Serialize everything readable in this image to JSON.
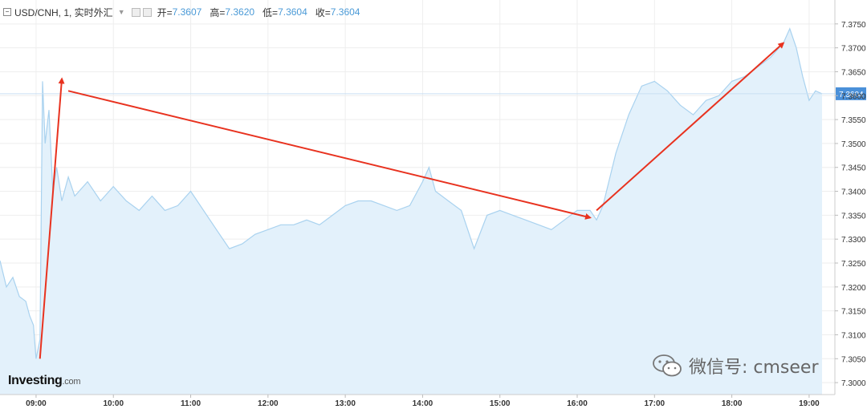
{
  "legend": {
    "symbol": "USD/CNH, 1, 实时外汇",
    "open_label": "开=",
    "open": "7.3607",
    "high_label": "高=",
    "high": "7.3620",
    "low_label": "低=",
    "low": "7.3604",
    "close_label": "收=",
    "close": "7.3604"
  },
  "watermark": {
    "text": "微信号: cmseer",
    "icon": "wechat-icon"
  },
  "logo": {
    "text": "Investing",
    "suffix": ".com"
  },
  "colors": {
    "line": "#a9d2ef",
    "fill": "#e3f1fb",
    "price_line": "#c9dff3",
    "price_badge": "#4a90d9",
    "arrow": "#e8321f",
    "grid": "#eeeeee"
  },
  "chart_data": {
    "type": "area",
    "title": "USD/CNH, 1, 实时外汇",
    "xlabel": "",
    "ylabel": "",
    "grid": true,
    "ylim": [
      7.2975,
      7.38
    ],
    "xlim": [
      "08:32",
      "19:20"
    ],
    "x_ticks": [
      "09:00",
      "10:00",
      "11:00",
      "12:00",
      "13:00",
      "14:00",
      "15:00",
      "16:00",
      "17:00",
      "18:00",
      "19:00"
    ],
    "y_ticks": [
      "7.3000",
      "7.3050",
      "7.3100",
      "7.3150",
      "7.3200",
      "7.3250",
      "7.3300",
      "7.3350",
      "7.3400",
      "7.3450",
      "7.3500",
      "7.3550",
      "7.3600",
      "7.3650",
      "7.3700",
      "7.3750"
    ],
    "current_price": "7.3604",
    "current_value": 7.3604,
    "series": [
      {
        "x": [
          "08:32",
          "08:37",
          "08:42",
          "08:47",
          "08:52",
          "08:55",
          "08:58",
          "09:00",
          "09:03",
          "09:05",
          "09:07",
          "09:10",
          "09:13",
          "09:16",
          "09:20",
          "09:25",
          "09:30",
          "09:40",
          "09:50",
          "10:00",
          "10:10",
          "10:20",
          "10:30",
          "10:40",
          "10:50",
          "11:00",
          "11:10",
          "11:20",
          "11:30",
          "11:40",
          "11:50",
          "12:00",
          "12:10",
          "12:20",
          "12:30",
          "12:40",
          "12:50",
          "13:00",
          "13:10",
          "13:20",
          "13:30",
          "13:40",
          "13:50",
          "14:00",
          "14:05",
          "14:10",
          "14:20",
          "14:30",
          "14:40",
          "14:50",
          "15:00",
          "15:10",
          "15:20",
          "15:30",
          "15:40",
          "15:50",
          "16:00",
          "16:10",
          "16:15",
          "16:20",
          "16:30",
          "16:40",
          "16:50",
          "17:00",
          "17:10",
          "17:20",
          "17:30",
          "17:40",
          "17:50",
          "18:00",
          "18:10",
          "18:20",
          "18:30",
          "18:40",
          "18:45",
          "18:50",
          "18:55",
          "19:00",
          "19:05",
          "19:10"
        ],
        "values": [
          7.3255,
          7.32,
          7.322,
          7.318,
          7.317,
          7.314,
          7.312,
          7.305,
          7.309,
          7.363,
          7.35,
          7.357,
          7.34,
          7.345,
          7.338,
          7.343,
          7.339,
          7.342,
          7.338,
          7.341,
          7.338,
          7.336,
          7.339,
          7.336,
          7.337,
          7.34,
          7.336,
          7.332,
          7.328,
          7.329,
          7.331,
          7.332,
          7.333,
          7.333,
          7.334,
          7.333,
          7.335,
          7.337,
          7.338,
          7.338,
          7.337,
          7.336,
          7.337,
          7.342,
          7.345,
          7.34,
          7.338,
          7.336,
          7.328,
          7.335,
          7.336,
          7.335,
          7.334,
          7.333,
          7.332,
          7.334,
          7.336,
          7.336,
          7.334,
          7.337,
          7.348,
          7.356,
          7.362,
          7.363,
          7.361,
          7.358,
          7.356,
          7.359,
          7.36,
          7.363,
          7.364,
          7.366,
          7.368,
          7.371,
          7.374,
          7.37,
          7.364,
          7.359,
          7.361,
          7.3604
        ]
      }
    ],
    "annotations": [
      {
        "type": "arrow",
        "from": [
          "09:03",
          7.305
        ],
        "to": [
          "09:20",
          7.3635
        ]
      },
      {
        "type": "arrow",
        "from": [
          "09:25",
          7.361
        ],
        "to": [
          "16:10",
          7.3345
        ]
      },
      {
        "type": "arrow",
        "from": [
          "16:15",
          7.336
        ],
        "to": [
          "18:40",
          7.371
        ]
      }
    ]
  }
}
